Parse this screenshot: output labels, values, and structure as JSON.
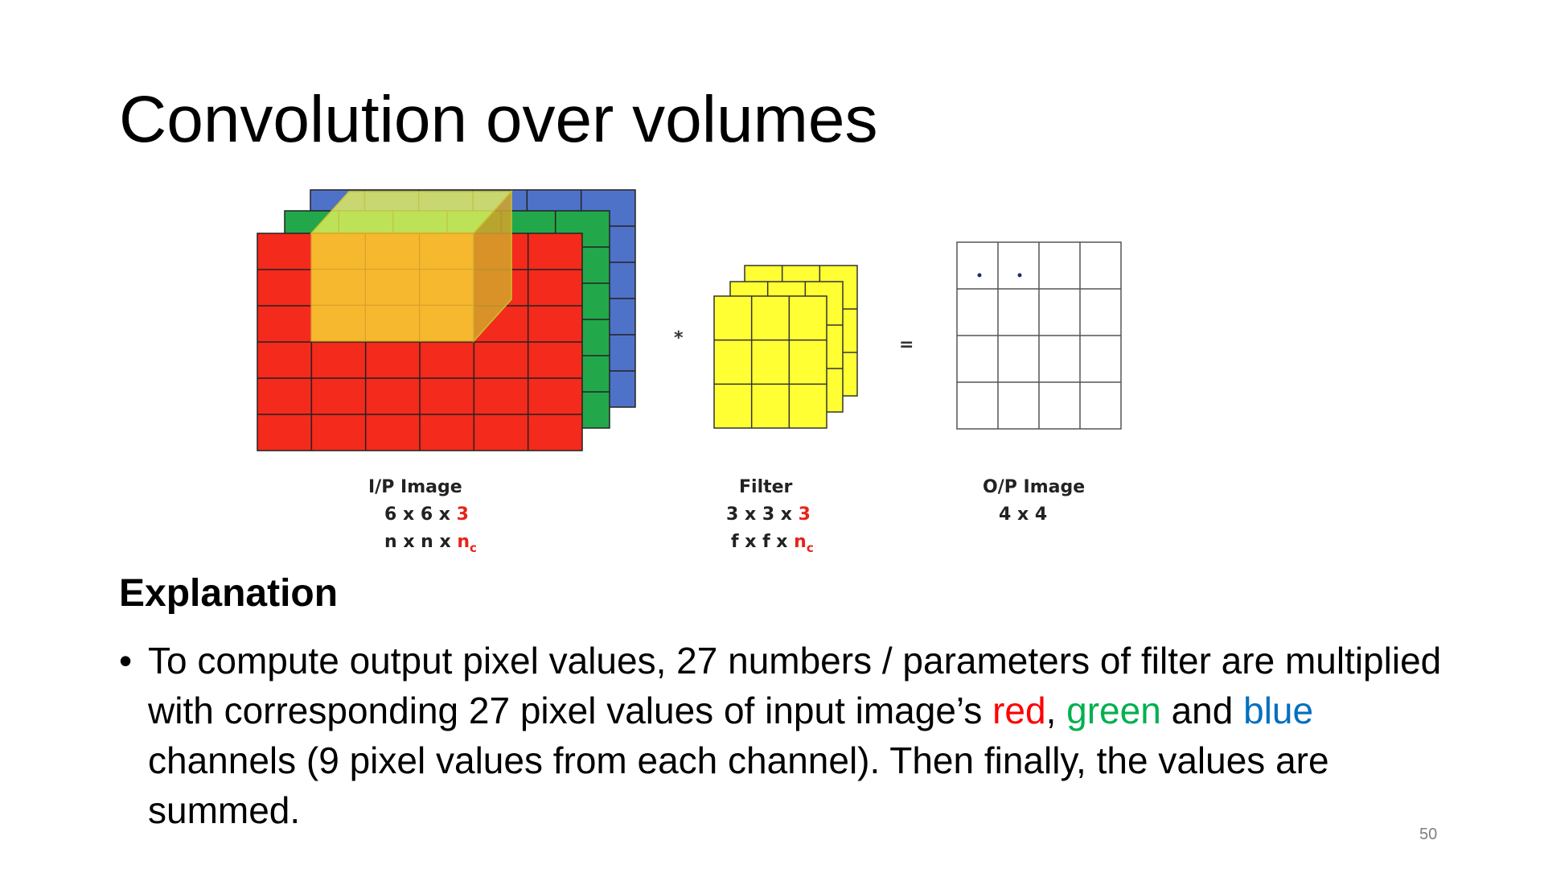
{
  "slide": {
    "title": "Convolution over volumes",
    "page_number": "50"
  },
  "diagram": {
    "input": {
      "label": "I/P Image",
      "dims_prefix": "6 x 6 x ",
      "dims_channels": "3",
      "symbolic_prefix": "n x n x ",
      "symbolic_channels": "n",
      "symbolic_channels_sub": "c",
      "grid_size": 6,
      "channel_colors": [
        "#f42a1c",
        "#22a84a",
        "#4f72c9"
      ]
    },
    "operator_conv": "*",
    "filter": {
      "label": "Filter",
      "dims_prefix": "3 x 3 x ",
      "dims_channels": "3",
      "symbolic_prefix": "f x f x ",
      "symbolic_channels": "n",
      "symbolic_channels_sub": "c",
      "grid_size": 3,
      "color": "#ffff33"
    },
    "operator_equals": "=",
    "output": {
      "label": "O/P Image",
      "dims": "4 x 4",
      "grid_size": 4
    },
    "highlight_color": "#f5b82e"
  },
  "explanation": {
    "heading": "Explanation",
    "bullet": "•",
    "text_1": "To compute output pixel values, 27 numbers / parameters of filter are multiplied with corresponding 27 pixel values of input image’s ",
    "word_red": "red",
    "text_2": ", ",
    "word_green": "green",
    "text_3": " and ",
    "word_blue": "blue",
    "text_4": " channels (9 pixel values from each channel). Then finally, the values are summed."
  }
}
